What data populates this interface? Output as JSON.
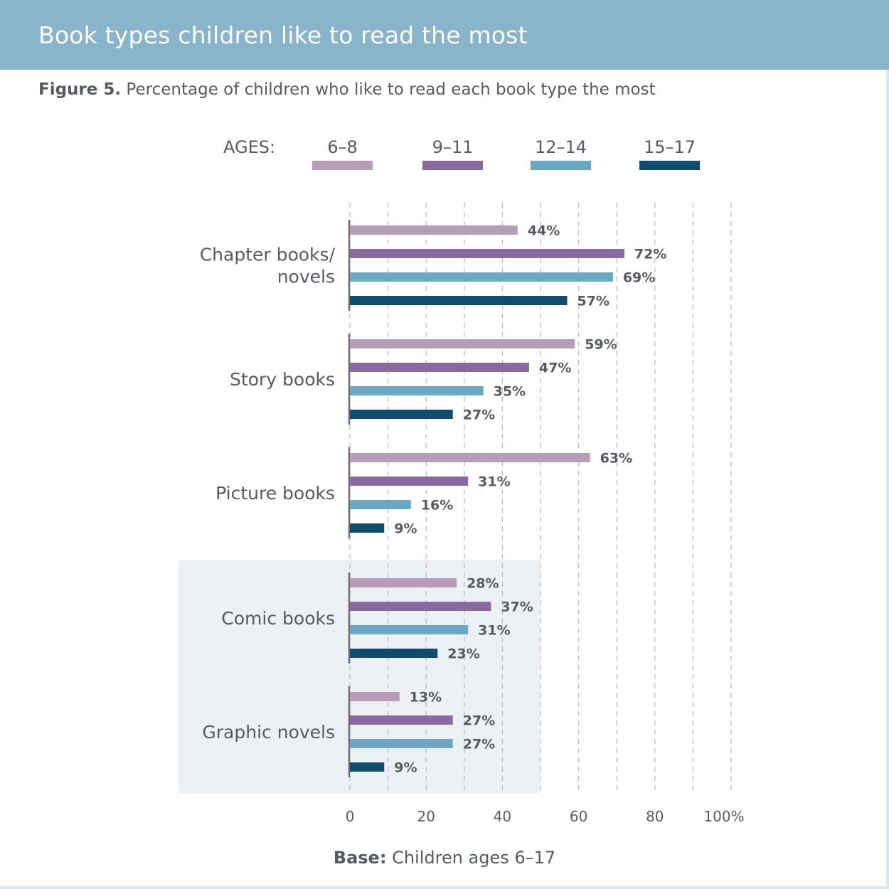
{
  "header": {
    "title": "Book types children like to read the most"
  },
  "subtitle": {
    "figure_label": "Figure 5.",
    "text": " Percentage of children who like to read each book type the most"
  },
  "footer": {
    "base_label": "Base:",
    "base_text": " Children ages 6–17"
  },
  "chart_data": {
    "type": "bar",
    "orientation": "horizontal",
    "title": "Percentage of children who like to read each book type the most",
    "legend_title": "AGES:",
    "legend_position": "top",
    "categories": [
      "Chapter books/ novels",
      "Story books",
      "Picture books",
      "Comic books",
      "Graphic novels"
    ],
    "category_lines": [
      [
        "Chapter books/",
        "novels"
      ],
      [
        "Story books"
      ],
      [
        "Picture books"
      ],
      [
        "Comic books"
      ],
      [
        "Graphic novels"
      ]
    ],
    "highlighted_categories": [
      "Comic books",
      "Graphic novels"
    ],
    "series": [
      {
        "name": "6–8",
        "color": "#b89db8",
        "values": [
          44,
          59,
          63,
          28,
          13
        ]
      },
      {
        "name": "9–11",
        "color": "#886aa0",
        "values": [
          72,
          47,
          31,
          37,
          27
        ]
      },
      {
        "name": "12–14",
        "color": "#6aa8c4",
        "values": [
          69,
          35,
          16,
          31,
          27
        ]
      },
      {
        "name": "15–17",
        "color": "#0f4c6e",
        "values": [
          57,
          27,
          9,
          23,
          9
        ]
      }
    ],
    "xlim": [
      0,
      100
    ],
    "x_ticks": [
      "0",
      "20",
      "40",
      "60",
      "80",
      "100%"
    ],
    "x_tick_values": [
      0,
      20,
      40,
      60,
      80,
      100
    ],
    "grid": true,
    "value_suffix": "%"
  }
}
